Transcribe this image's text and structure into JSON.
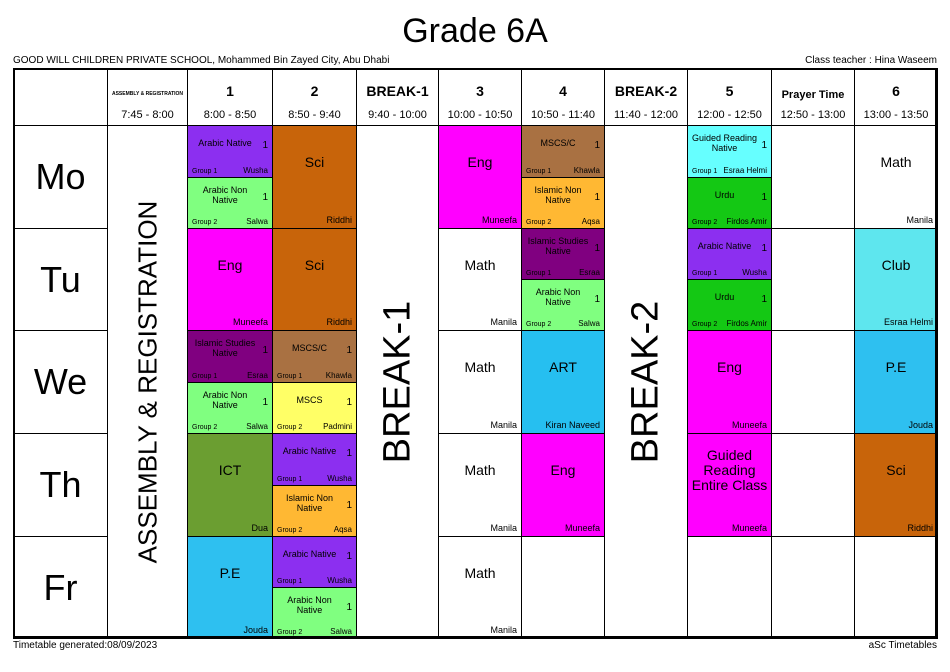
{
  "header": {
    "title": "Grade 6A",
    "school": "GOOD WILL CHILDREN PRIVATE SCHOOL, Mohammed Bin Zayed City, Abu Dhabi",
    "class_teacher": "Class teacher : Hina Waseem"
  },
  "footer": {
    "generated": "Timetable generated:08/09/2023",
    "software": "aSc Timetables"
  },
  "table": {
    "columns": [
      {
        "label": "ASSEMBLY & REGISTRATION",
        "time": "7:45 - 8:00"
      },
      {
        "label": "1",
        "time": "8:00 - 8:50"
      },
      {
        "label": "2",
        "time": "8:50 - 9:40"
      },
      {
        "label": "BREAK-1",
        "time": "9:40 - 10:00"
      },
      {
        "label": "3",
        "time": "10:00 - 10:50"
      },
      {
        "label": "4",
        "time": "10:50 - 11:40"
      },
      {
        "label": "BREAK-2",
        "time": "11:40 - 12:00"
      },
      {
        "label": "5",
        "time": "12:00 - 12:50"
      },
      {
        "label": "Prayer Time",
        "time": "12:50 - 13:00"
      },
      {
        "label": "6",
        "time": "13:00 - 13:50"
      }
    ],
    "days": [
      "Mo",
      "Tu",
      "We",
      "Th",
      "Fr"
    ],
    "spans": [
      {
        "column": 0,
        "text": "ASSEMBLY & REGISTRATION"
      },
      {
        "column": 3,
        "text": "BREAK-1"
      },
      {
        "column": 6,
        "text": "BREAK-2"
      }
    ],
    "lessons": [
      {
        "day": 0,
        "column": 1,
        "part": "top",
        "subject": "Arabic Native",
        "number": "1",
        "group": "Group 1",
        "teacher": "Wusha",
        "color": "#8c2ff0"
      },
      {
        "day": 0,
        "column": 1,
        "part": "bottom",
        "subject": "Arabic Non Native",
        "number": "1",
        "group": "Group 2",
        "teacher": "Salwa",
        "color": "#80ff80"
      },
      {
        "day": 0,
        "column": 2,
        "part": "full",
        "subject": "Sci",
        "teacher": "Riddhi",
        "color": "#c8640a"
      },
      {
        "day": 0,
        "column": 4,
        "part": "full",
        "subject": "Eng",
        "teacher": "Muneefa",
        "color": "#ff00ff"
      },
      {
        "day": 0,
        "column": 5,
        "part": "top",
        "subject": "MSCS/C",
        "number": "1",
        "group": "Group 1",
        "teacher": "Khawla",
        "color": "#a97142"
      },
      {
        "day": 0,
        "column": 5,
        "part": "bottom",
        "subject": "Islamic Non Native",
        "number": "1",
        "group": "Group 2",
        "teacher": "Aqsa",
        "color": "#ffb833"
      },
      {
        "day": 0,
        "column": 7,
        "part": "top",
        "subject": "Guided Reading Native",
        "number": "1",
        "group": "Group 1",
        "teacher": "Esraa Helmi",
        "color": "#66ffff"
      },
      {
        "day": 0,
        "column": 7,
        "part": "bottom",
        "subject": "Urdu",
        "number": "1",
        "group": "Group 2",
        "teacher": "Firdos Amir",
        "color": "#14c814"
      },
      {
        "day": 0,
        "column": 9,
        "part": "full",
        "subject": "Math",
        "teacher": "Manila",
        "color": "#ffffff"
      },
      {
        "day": 1,
        "column": 1,
        "part": "full",
        "subject": "Eng",
        "teacher": "Muneefa",
        "color": "#ff00ff"
      },
      {
        "day": 1,
        "column": 2,
        "part": "full",
        "subject": "Sci",
        "teacher": "Riddhi",
        "color": "#c8640a"
      },
      {
        "day": 1,
        "column": 4,
        "part": "full",
        "subject": "Math",
        "teacher": "Manila",
        "color": "#ffffff"
      },
      {
        "day": 1,
        "column": 5,
        "part": "top",
        "subject": "Islamic Studies Native",
        "number": "1",
        "group": "Group 1",
        "teacher": "Esraa",
        "color": "#800080"
      },
      {
        "day": 1,
        "column": 5,
        "part": "bottom",
        "subject": "Arabic Non Native",
        "number": "1",
        "group": "Group 2",
        "teacher": "Salwa",
        "color": "#80ff80"
      },
      {
        "day": 1,
        "column": 7,
        "part": "top",
        "subject": "Arabic Native",
        "number": "1",
        "group": "Group 1",
        "teacher": "Wusha",
        "color": "#8c2ff0"
      },
      {
        "day": 1,
        "column": 7,
        "part": "bottom",
        "subject": "Urdu",
        "number": "1",
        "group": "Group 2",
        "teacher": "Firdos Amir",
        "color": "#14c814"
      },
      {
        "day": 1,
        "column": 9,
        "part": "full",
        "subject": "Club",
        "teacher": "Esraa Helmi",
        "color": "#5ee6ee"
      },
      {
        "day": 2,
        "column": 1,
        "part": "top",
        "subject": "Islamic Studies Native",
        "number": "1",
        "group": "Group 1",
        "teacher": "Esraa",
        "color": "#800080"
      },
      {
        "day": 2,
        "column": 1,
        "part": "bottom",
        "subject": "Arabic Non Native",
        "number": "1",
        "group": "Group 2",
        "teacher": "Salwa",
        "color": "#80ff80"
      },
      {
        "day": 2,
        "column": 2,
        "part": "top",
        "subject": "MSCS/C",
        "number": "1",
        "group": "Group 1",
        "teacher": "Khawla",
        "color": "#a97142"
      },
      {
        "day": 2,
        "column": 2,
        "part": "bottom",
        "subject": "MSCS",
        "number": "1",
        "group": "Group 2",
        "teacher": "Padmini",
        "color": "#ffff66"
      },
      {
        "day": 2,
        "column": 4,
        "part": "full",
        "subject": "Math",
        "teacher": "Manila",
        "color": "#ffffff"
      },
      {
        "day": 2,
        "column": 5,
        "part": "full",
        "subject": "ART",
        "teacher": "Kiran Naveed",
        "color": "#26bff0"
      },
      {
        "day": 2,
        "column": 7,
        "part": "full",
        "subject": "Eng",
        "teacher": "Muneefa",
        "color": "#ff00ff"
      },
      {
        "day": 2,
        "column": 9,
        "part": "full",
        "subject": "P.E",
        "teacher": "Jouda",
        "color": "#2ec0f0"
      },
      {
        "day": 3,
        "column": 1,
        "part": "full",
        "subject": "ICT",
        "teacher": "Dua",
        "color": "#6b9e31"
      },
      {
        "day": 3,
        "column": 2,
        "part": "top",
        "subject": "Arabic Native",
        "number": "1",
        "group": "Group 1",
        "teacher": "Wusha",
        "color": "#8c2ff0"
      },
      {
        "day": 3,
        "column": 2,
        "part": "bottom",
        "subject": "Islamic Non Native",
        "number": "1",
        "group": "Group 2",
        "teacher": "Aqsa",
        "color": "#ffb833"
      },
      {
        "day": 3,
        "column": 4,
        "part": "full",
        "subject": "Math",
        "teacher": "Manila",
        "color": "#ffffff"
      },
      {
        "day": 3,
        "column": 5,
        "part": "full",
        "subject": "Eng",
        "teacher": "Muneefa",
        "color": "#ff00ff"
      },
      {
        "day": 3,
        "column": 7,
        "part": "full",
        "subject": "Guided Reading Entire Class",
        "teacher": "Muneefa",
        "color": "#ff00ff"
      },
      {
        "day": 3,
        "column": 9,
        "part": "full",
        "subject": "Sci",
        "teacher": "Riddhi",
        "color": "#c8640a"
      },
      {
        "day": 4,
        "column": 1,
        "part": "full",
        "subject": "P.E",
        "teacher": "Jouda",
        "color": "#2ec0f0"
      },
      {
        "day": 4,
        "column": 2,
        "part": "top",
        "subject": "Arabic Native",
        "number": "1",
        "group": "Group 1",
        "teacher": "Wusha",
        "color": "#8c2ff0"
      },
      {
        "day": 4,
        "column": 2,
        "part": "bottom",
        "subject": "Arabic Non Native",
        "number": "1",
        "group": "Group 2",
        "teacher": "Salwa",
        "color": "#80ff80"
      },
      {
        "day": 4,
        "column": 4,
        "part": "full",
        "subject": "Math",
        "teacher": "Manila",
        "color": "#ffffff"
      }
    ]
  }
}
